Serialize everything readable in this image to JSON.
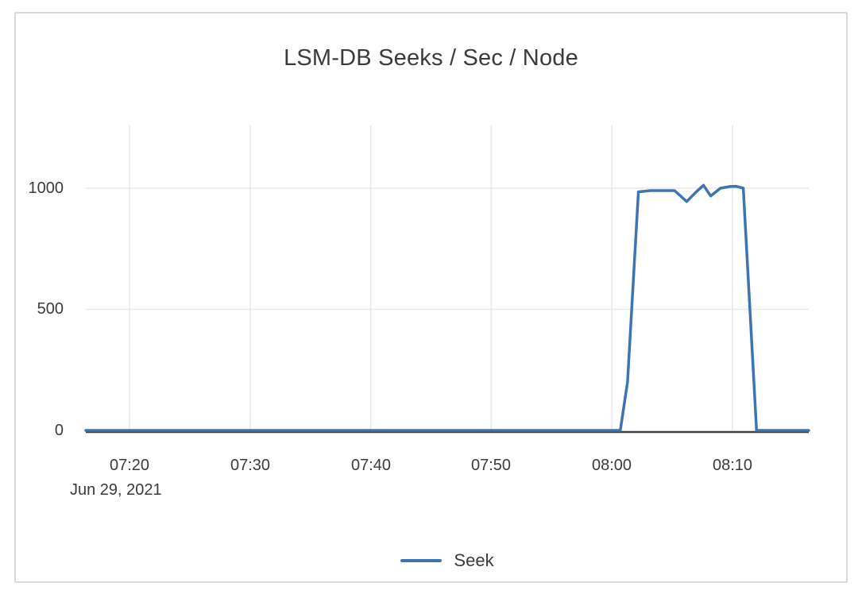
{
  "chart_data": {
    "type": "line",
    "title": "LSM-DB Seeks / Sec / Node",
    "xlabel": "",
    "ylabel": "",
    "grid": true,
    "x_axis": {
      "tick_labels": [
        "07:20",
        "07:30",
        "07:40",
        "07:50",
        "08:00",
        "08:10"
      ],
      "tick_minutes": [
        440,
        450,
        460,
        470,
        480,
        490
      ],
      "date_label": "Jun 29, 2021",
      "range_minutes": [
        436.37,
        496.33
      ]
    },
    "y_axis": {
      "tick_labels": [
        "0",
        "500",
        "1000"
      ],
      "tick_values": [
        0,
        500,
        1000
      ],
      "range": [
        0,
        1259
      ]
    },
    "legend": {
      "position": "bottom",
      "entries": [
        {
          "label": "Seek",
          "color": "#3c75b2"
        }
      ]
    },
    "series": [
      {
        "name": "Seek",
        "color": "#3c75b2",
        "points": [
          {
            "t": "07:16:22",
            "m": 436.37,
            "v": 0
          },
          {
            "t": "07:30:00",
            "m": 450.0,
            "v": 0
          },
          {
            "t": "07:45:00",
            "m": 465.0,
            "v": 0
          },
          {
            "t": "07:55:00",
            "m": 475.0,
            "v": 0
          },
          {
            "t": "08:00:42",
            "m": 480.7,
            "v": 0
          },
          {
            "t": "08:01:18",
            "m": 481.3,
            "v": 200
          },
          {
            "t": "08:02:12",
            "m": 482.2,
            "v": 985
          },
          {
            "t": "08:03:12",
            "m": 483.2,
            "v": 990
          },
          {
            "t": "08:05:12",
            "m": 485.2,
            "v": 990
          },
          {
            "t": "08:06:12",
            "m": 486.2,
            "v": 945
          },
          {
            "t": "08:07:00",
            "m": 487.0,
            "v": 985
          },
          {
            "t": "08:07:36",
            "m": 487.6,
            "v": 1012
          },
          {
            "t": "08:08:12",
            "m": 488.2,
            "v": 968
          },
          {
            "t": "08:09:00",
            "m": 489.0,
            "v": 1000
          },
          {
            "t": "08:09:48",
            "m": 489.8,
            "v": 1007
          },
          {
            "t": "08:10:18",
            "m": 490.3,
            "v": 1008
          },
          {
            "t": "08:10:54",
            "m": 490.9,
            "v": 1000
          },
          {
            "t": "08:12:00",
            "m": 492.0,
            "v": 0
          },
          {
            "t": "08:14:00",
            "m": 494.0,
            "v": 0
          },
          {
            "t": "08:16:20",
            "m": 496.33,
            "v": 0
          }
        ]
      }
    ],
    "colors": {
      "series_blue": "#3c75b2",
      "gridline": "#e8e8e8",
      "axis_line": "#3f3f3f",
      "text": "#3b3b3b",
      "card_border": "#dadada"
    }
  }
}
